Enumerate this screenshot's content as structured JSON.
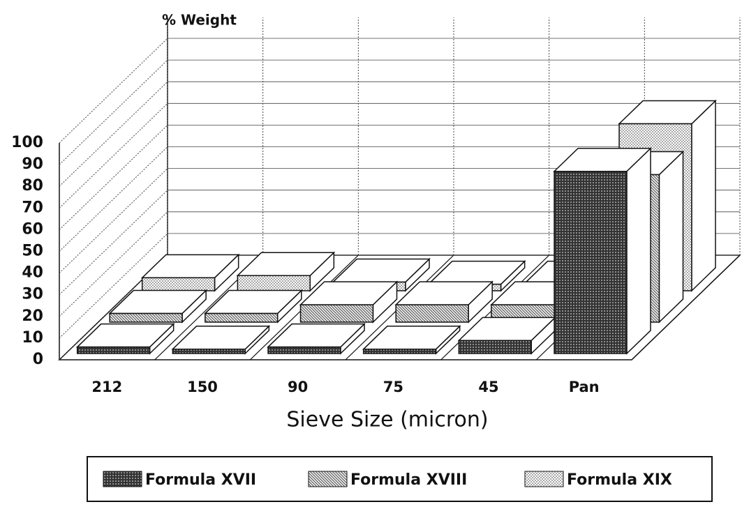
{
  "chart_data": {
    "type": "bar3d",
    "y_title": "% Weight",
    "x_title": "Sieve Size (micron)",
    "categories": [
      "212",
      "150",
      "90",
      "75",
      "45",
      "Pan"
    ],
    "series": [
      {
        "name": "Formula XVII",
        "color": "#333333",
        "values": [
          3,
          2,
          3,
          2,
          6,
          84
        ]
      },
      {
        "name": "Formula XVIII",
        "color": "#666666",
        "values": [
          4,
          4,
          8,
          8,
          8,
          68
        ]
      },
      {
        "name": "Formula XIX",
        "color": "#a8a8a8",
        "values": [
          6,
          7,
          4,
          3,
          3,
          77
        ]
      }
    ],
    "ylim": [
      0,
      100
    ],
    "yticks": [
      0,
      10,
      20,
      30,
      40,
      50,
      60,
      70,
      80,
      90,
      100
    ],
    "grid": true
  }
}
